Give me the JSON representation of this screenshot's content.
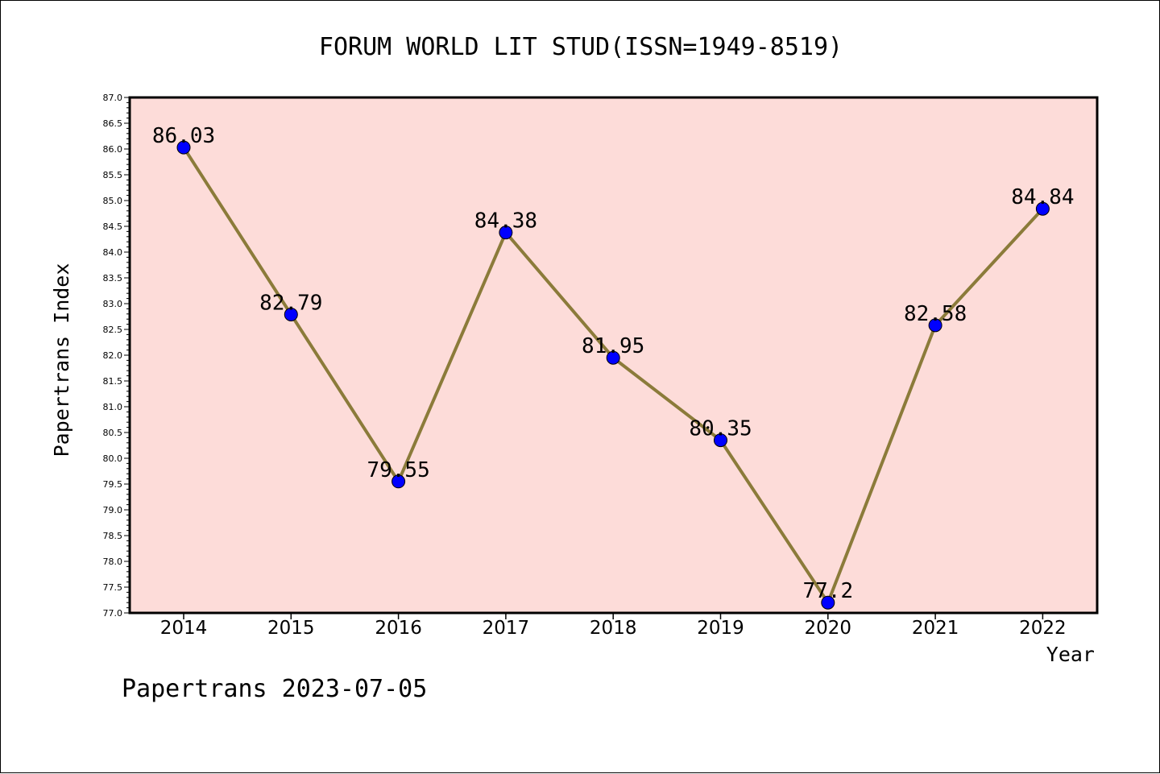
{
  "chart_data": {
    "type": "line",
    "title": "FORUM WORLD LIT STUD(ISSN=1949-8519)",
    "xlabel": "Year",
    "ylabel": "Papertrans Index",
    "categories": [
      "2014",
      "2015",
      "2016",
      "2017",
      "2018",
      "2019",
      "2020",
      "2021",
      "2022"
    ],
    "series": [
      {
        "values": [
          86.03,
          82.79,
          79.55,
          84.38,
          81.95,
          80.35,
          77.2,
          82.58,
          84.84
        ],
        "labels": [
          "86.03",
          "82.79",
          "79.55",
          "84.38",
          "81.95",
          "80.35",
          "77.2",
          "82.58",
          "84.84"
        ]
      }
    ],
    "ylim": [
      77.0,
      87.0
    ],
    "ytick_step": 0.5,
    "grid": false,
    "colors": {
      "plot_background": "#fddcd9",
      "line": "#8b7b3a",
      "marker": "#0000ff"
    }
  },
  "footer": {
    "credit": "Papertrans 2023-07-05"
  }
}
